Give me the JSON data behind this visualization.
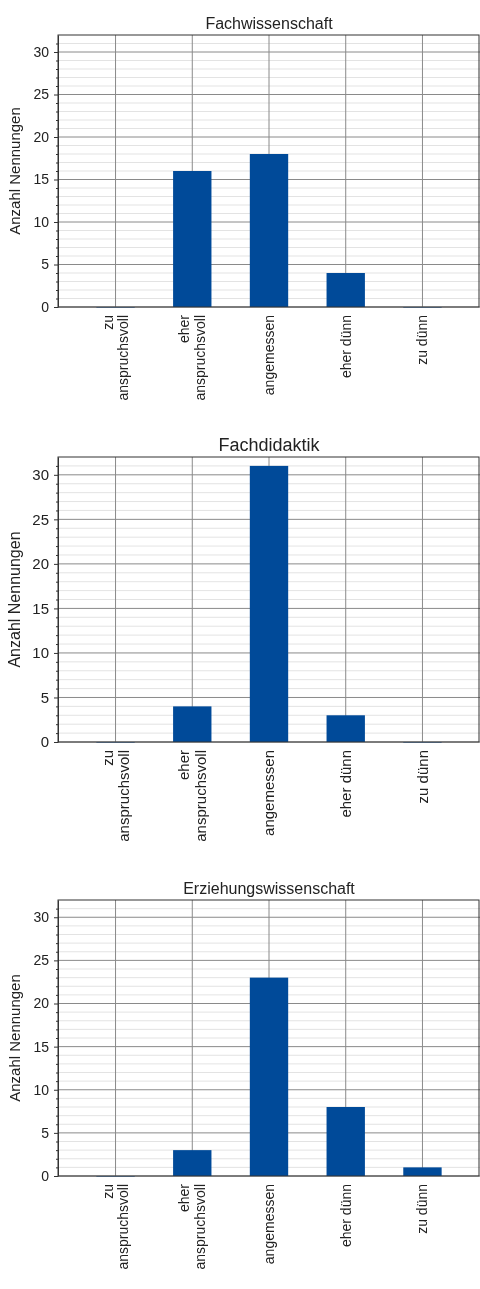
{
  "chart_data": [
    {
      "type": "bar",
      "title": "Fachwissenschaft",
      "ylabel": "Anzahl Nennungen",
      "categories": [
        "zu anspruchsvoll",
        "eher anspruchsvoll",
        "angemessen",
        "eher dünn",
        "zu dünn"
      ],
      "values": [
        0,
        16,
        18,
        4,
        0
      ],
      "color": "#004a99",
      "ylim": [
        0,
        32
      ],
      "yticks": [
        0,
        {
          "value": 1,
          "label": null
        },
        {
          "value": 2,
          "label": null
        },
        {
          "value": 3,
          "label": null
        },
        {
          "value": 4,
          "label": null
        },
        5,
        {
          "value": 6,
          "label": null
        },
        {
          "value": 7,
          "label": null
        },
        {
          "value": 8,
          "label": null
        },
        {
          "value": 9,
          "label": null
        },
        10,
        {
          "value": 11,
          "label": null
        },
        {
          "value": 12,
          "label": null
        },
        {
          "value": 13,
          "label": null
        },
        {
          "value": 14,
          "label": null
        },
        15,
        {
          "value": 16,
          "label": null
        },
        {
          "value": 17,
          "label": null
        },
        {
          "value": 18,
          "label": null
        },
        {
          "value": 19,
          "label": null
        },
        20,
        {
          "value": 21,
          "label": null
        },
        {
          "value": 22,
          "label": null
        },
        {
          "value": 23,
          "label": null
        },
        {
          "value": 24,
          "label": null
        },
        25,
        {
          "value": 26,
          "label": null
        },
        {
          "value": 27,
          "label": null
        },
        {
          "value": 28,
          "label": null
        },
        {
          "value": 29,
          "label": null
        },
        30,
        {
          "value": 31,
          "label": null
        }
      ],
      "grid": true
    },
    {
      "type": "bar",
      "title": "Fachdidaktik",
      "ylabel": "Anzahl Nennungen",
      "categories": [
        "zu anspruchsvoll",
        "eher anspruchsvoll",
        "angemessen",
        "eher dünn",
        "zu dünn"
      ],
      "values": [
        0,
        4,
        31,
        3,
        0
      ],
      "color": "#004a99",
      "ylim": [
        0,
        32
      ],
      "yticks": [
        0,
        {
          "value": 1,
          "label": null
        },
        {
          "value": 2,
          "label": null
        },
        {
          "value": 3,
          "label": null
        },
        {
          "value": 4,
          "label": null
        },
        5,
        {
          "value": 6,
          "label": null
        },
        {
          "value": 7,
          "label": null
        },
        {
          "value": 8,
          "label": null
        },
        {
          "value": 9,
          "label": null
        },
        10,
        {
          "value": 11,
          "label": null
        },
        {
          "value": 12,
          "label": null
        },
        {
          "value": 13,
          "label": null
        },
        {
          "value": 14,
          "label": null
        },
        15,
        {
          "value": 16,
          "label": null
        },
        {
          "value": 17,
          "label": null
        },
        {
          "value": 18,
          "label": null
        },
        {
          "value": 19,
          "label": null
        },
        20,
        {
          "value": 21,
          "label": null
        },
        {
          "value": 22,
          "label": null
        },
        {
          "value": 23,
          "label": null
        },
        {
          "value": 24,
          "label": null
        },
        25,
        {
          "value": 26,
          "label": null
        },
        {
          "value": 27,
          "label": null
        },
        {
          "value": 28,
          "label": null
        },
        {
          "value": 29,
          "label": null
        },
        30,
        {
          "value": 31,
          "label": null
        }
      ],
      "grid": true
    },
    {
      "type": "bar",
      "title": "Erziehungswissenschaft",
      "ylabel": "Anzahl Nennungen",
      "categories": [
        "zu anspruchsvoll",
        "eher anspruchsvoll",
        "angemessen",
        "eher dünn",
        "zu dünn"
      ],
      "values": [
        0,
        3,
        23,
        8,
        1
      ],
      "color": "#004a99",
      "ylim": [
        0,
        32
      ],
      "yticks": [
        0,
        {
          "value": 1,
          "label": null
        },
        {
          "value": 2,
          "label": null
        },
        {
          "value": 3,
          "label": null
        },
        {
          "value": 4,
          "label": null
        },
        5,
        {
          "value": 6,
          "label": null
        },
        {
          "value": 7,
          "label": null
        },
        {
          "value": 8,
          "label": null
        },
        {
          "value": 9,
          "label": null
        },
        10,
        {
          "value": 11,
          "label": null
        },
        {
          "value": 12,
          "label": null
        },
        {
          "value": 13,
          "label": null
        },
        {
          "value": 14,
          "label": null
        },
        15,
        {
          "value": 16,
          "label": null
        },
        {
          "value": 17,
          "label": null
        },
        {
          "value": 18,
          "label": null
        },
        {
          "value": 19,
          "label": null
        },
        20,
        {
          "value": 21,
          "label": null
        },
        {
          "value": 22,
          "label": null
        },
        {
          "value": 23,
          "label": null
        },
        {
          "value": 24,
          "label": null
        },
        25,
        {
          "value": 26,
          "label": null
        },
        {
          "value": 27,
          "label": null
        },
        {
          "value": 28,
          "label": null
        },
        {
          "value": 29,
          "label": null
        },
        30,
        {
          "value": 31,
          "label": null
        }
      ],
      "grid": true
    }
  ]
}
